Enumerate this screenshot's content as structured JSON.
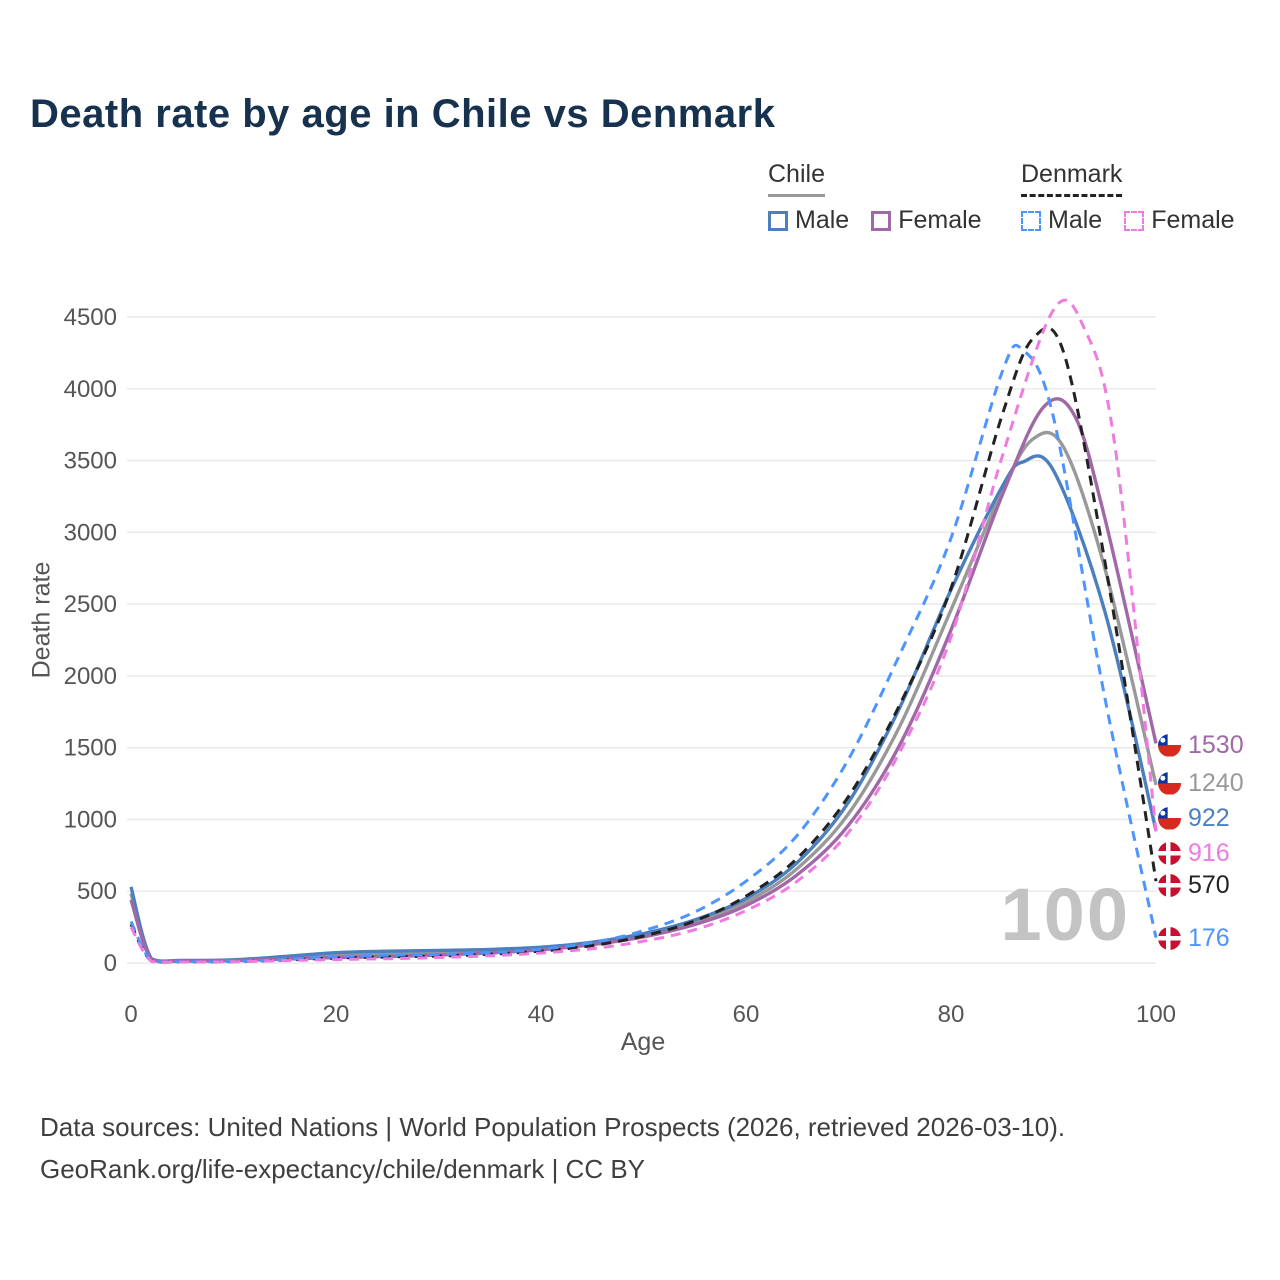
{
  "title": "Death rate by age in Chile vs Denmark",
  "legend": {
    "chile": "Chile",
    "denmark": "Denmark",
    "male": "Male",
    "female": "Female"
  },
  "watermark_age": "100",
  "footer": {
    "line1": "Data sources: United Nations | World Population Prospects (2026, retrieved 2026-03-10).",
    "line2": "GeoRank.org/life-expectancy/chile/denmark | CC BY"
  },
  "colors": {
    "chile": "#999999",
    "chile_male": "#4c7fbe",
    "chile_female": "#a168a8",
    "denmark": "#222222",
    "denmark_male": "#4d94ff",
    "denmark_female": "#ee7be0",
    "title": "#16324e",
    "watermark": "#c3c3c3"
  },
  "chart_data": {
    "type": "line",
    "title": "Death rate by age in Chile vs Denmark",
    "xlabel": "Age",
    "ylabel": "Death rate",
    "xlim": [
      0,
      100
    ],
    "ylim": [
      0,
      4500
    ],
    "x_ticks": [
      0,
      20,
      40,
      60,
      80,
      100
    ],
    "y_ticks": [
      0,
      500,
      1000,
      1500,
      2000,
      2500,
      3000,
      3500,
      4000,
      4500
    ],
    "grid": "horizontal",
    "legend_position": "top-right",
    "series": [
      {
        "name": "Chile (both sexes)",
        "color_key": "chile",
        "dash": "solid",
        "end_value": 1240,
        "points": [
          [
            0,
            485
          ],
          [
            2,
            28
          ],
          [
            5,
            16
          ],
          [
            10,
            20
          ],
          [
            15,
            37
          ],
          [
            20,
            55
          ],
          [
            25,
            64
          ],
          [
            30,
            72
          ],
          [
            35,
            83
          ],
          [
            40,
            101
          ],
          [
            45,
            137
          ],
          [
            50,
            194
          ],
          [
            55,
            284
          ],
          [
            60,
            425
          ],
          [
            65,
            658
          ],
          [
            70,
            1040
          ],
          [
            75,
            1650
          ],
          [
            80,
            2460
          ],
          [
            85,
            3290
          ],
          [
            88,
            3650
          ],
          [
            91,
            3590
          ],
          [
            95,
            2750
          ],
          [
            100,
            1240
          ]
        ]
      },
      {
        "name": "Chile Male",
        "color_key": "chile_male",
        "dash": "solid",
        "end_value": 922,
        "points": [
          [
            0,
            530
          ],
          [
            2,
            30
          ],
          [
            5,
            18
          ],
          [
            10,
            22
          ],
          [
            15,
            45
          ],
          [
            20,
            72
          ],
          [
            25,
            82
          ],
          [
            30,
            88
          ],
          [
            35,
            95
          ],
          [
            40,
            110
          ],
          [
            45,
            145
          ],
          [
            50,
            205
          ],
          [
            55,
            300
          ],
          [
            60,
            450
          ],
          [
            65,
            700
          ],
          [
            70,
            1120
          ],
          [
            75,
            1780
          ],
          [
            80,
            2600
          ],
          [
            85,
            3320
          ],
          [
            87,
            3490
          ],
          [
            90,
            3430
          ],
          [
            95,
            2450
          ],
          [
            100,
            922
          ]
        ]
      },
      {
        "name": "Chile Female",
        "color_key": "chile_female",
        "dash": "solid",
        "end_value": 1530,
        "points": [
          [
            0,
            440
          ],
          [
            2,
            25
          ],
          [
            5,
            14
          ],
          [
            10,
            17
          ],
          [
            15,
            28
          ],
          [
            20,
            38
          ],
          [
            25,
            45
          ],
          [
            30,
            55
          ],
          [
            35,
            70
          ],
          [
            40,
            92
          ],
          [
            45,
            128
          ],
          [
            50,
            182
          ],
          [
            55,
            268
          ],
          [
            60,
            400
          ],
          [
            65,
            615
          ],
          [
            70,
            960
          ],
          [
            75,
            1520
          ],
          [
            80,
            2320
          ],
          [
            85,
            3260
          ],
          [
            89,
            3870
          ],
          [
            92,
            3820
          ],
          [
            95,
            3100
          ],
          [
            100,
            1530
          ]
        ]
      },
      {
        "name": "Denmark (both sexes)",
        "color_key": "denmark",
        "dash": "dashed",
        "end_value": 570,
        "points": [
          [
            0,
            270
          ],
          [
            2,
            13
          ],
          [
            5,
            8
          ],
          [
            10,
            10
          ],
          [
            15,
            21
          ],
          [
            20,
            34
          ],
          [
            25,
            42
          ],
          [
            30,
            49
          ],
          [
            35,
            61
          ],
          [
            40,
            83
          ],
          [
            45,
            121
          ],
          [
            50,
            188
          ],
          [
            55,
            293
          ],
          [
            60,
            465
          ],
          [
            65,
            730
          ],
          [
            70,
            1160
          ],
          [
            75,
            1800
          ],
          [
            80,
            2610
          ],
          [
            85,
            3820
          ],
          [
            88,
            4350
          ],
          [
            91,
            4250
          ],
          [
            95,
            2800
          ],
          [
            100,
            570
          ]
        ]
      },
      {
        "name": "Denmark Male",
        "color_key": "denmark_male",
        "dash": "dashed",
        "end_value": 176,
        "points": [
          [
            0,
            290
          ],
          [
            2,
            15
          ],
          [
            5,
            9
          ],
          [
            10,
            11
          ],
          [
            15,
            24
          ],
          [
            20,
            44
          ],
          [
            25,
            54
          ],
          [
            30,
            60
          ],
          [
            35,
            72
          ],
          [
            40,
            96
          ],
          [
            45,
            142
          ],
          [
            50,
            225
          ],
          [
            55,
            355
          ],
          [
            60,
            570
          ],
          [
            65,
            890
          ],
          [
            70,
            1420
          ],
          [
            75,
            2150
          ],
          [
            80,
            2960
          ],
          [
            85,
            4120
          ],
          [
            87,
            4270
          ],
          [
            90,
            3800
          ],
          [
            95,
            1850
          ],
          [
            100,
            176
          ]
        ]
      },
      {
        "name": "Denmark Female",
        "color_key": "denmark_female",
        "dash": "dashed",
        "end_value": 916,
        "points": [
          [
            0,
            250
          ],
          [
            2,
            12
          ],
          [
            5,
            7
          ],
          [
            10,
            9
          ],
          [
            15,
            17
          ],
          [
            20,
            24
          ],
          [
            25,
            30
          ],
          [
            30,
            38
          ],
          [
            35,
            50
          ],
          [
            40,
            70
          ],
          [
            45,
            100
          ],
          [
            50,
            152
          ],
          [
            55,
            232
          ],
          [
            60,
            365
          ],
          [
            65,
            570
          ],
          [
            70,
            910
          ],
          [
            75,
            1470
          ],
          [
            80,
            2270
          ],
          [
            85,
            3530
          ],
          [
            90,
            4550
          ],
          [
            93,
            4420
          ],
          [
            96,
            3600
          ],
          [
            100,
            916
          ]
        ]
      }
    ],
    "end_labels": [
      {
        "value": 1530,
        "series": "Chile Female",
        "flag": "chile",
        "color_key": "chile_female"
      },
      {
        "value": 1240,
        "series": "Chile (both sexes)",
        "flag": "chile",
        "color_key": "chile"
      },
      {
        "value": 922,
        "series": "Chile Male",
        "flag": "chile",
        "color_key": "chile_male"
      },
      {
        "value": 916,
        "series": "Denmark Female",
        "flag": "denmark",
        "color_key": "denmark_female"
      },
      {
        "value": 570,
        "series": "Denmark (both sexes)",
        "flag": "denmark",
        "color_key": "denmark"
      },
      {
        "value": 176,
        "series": "Denmark Male",
        "flag": "denmark",
        "color_key": "denmark_male"
      }
    ]
  }
}
